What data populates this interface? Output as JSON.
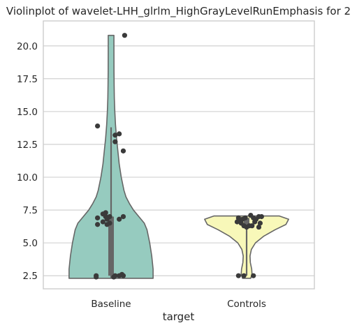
{
  "chart_data": {
    "type": "violin",
    "title": "Violinplot of wavelet-LHH_glrlm_HighGrayLevelRunEmphasis for 2",
    "xlabel": "target",
    "ylabel": "",
    "categories": [
      "Baseline",
      "Controls"
    ],
    "ylim": [
      1.5,
      21.9
    ],
    "yticks": [
      2.5,
      5.0,
      7.5,
      10.0,
      12.5,
      15.0,
      17.5,
      20.0
    ],
    "ytick_labels": [
      "2.5",
      "5.0",
      "7.5",
      "10.0",
      "12.5",
      "15.0",
      "17.5",
      "20.0"
    ],
    "grid": "horizontal",
    "colors": {
      "Baseline": "#96cbbf",
      "Controls": "#f8f8b9",
      "outline": "#666666",
      "points": "#3a3a3a",
      "box": "#666666",
      "grid": "#cccccc",
      "frame": "#cccccc"
    },
    "violins": [
      {
        "category": "Baseline",
        "halfwidth_profile": [
          [
            2.3,
            0.62
          ],
          [
            3.0,
            0.62
          ],
          [
            4.0,
            0.6
          ],
          [
            5.0,
            0.57
          ],
          [
            6.0,
            0.53
          ],
          [
            6.5,
            0.49
          ],
          [
            7.0,
            0.41
          ],
          [
            7.5,
            0.33
          ],
          [
            8.0,
            0.27
          ],
          [
            8.5,
            0.22
          ],
          [
            9.0,
            0.19
          ],
          [
            10.0,
            0.15
          ],
          [
            11.0,
            0.12
          ],
          [
            12.0,
            0.1
          ],
          [
            13.0,
            0.08
          ],
          [
            14.0,
            0.065
          ],
          [
            15.0,
            0.055
          ],
          [
            16.0,
            0.048
          ],
          [
            17.0,
            0.045
          ],
          [
            18.0,
            0.043
          ],
          [
            20.0,
            0.042
          ],
          [
            20.8,
            0.042
          ]
        ],
        "box": {
          "q1": 2.5,
          "median": 6.6,
          "q3": 7.0,
          "whisker_low": 2.3,
          "whisker_high": 13.8
        }
      },
      {
        "category": "Controls",
        "halfwidth_profile": [
          [
            2.3,
            0.06
          ],
          [
            2.6,
            0.08
          ],
          [
            3.0,
            0.075
          ],
          [
            3.5,
            0.055
          ],
          [
            4.0,
            0.05
          ],
          [
            4.5,
            0.07
          ],
          [
            5.0,
            0.13
          ],
          [
            5.5,
            0.25
          ],
          [
            6.0,
            0.42
          ],
          [
            6.4,
            0.58
          ],
          [
            6.8,
            0.62
          ],
          [
            7.05,
            0.48
          ]
        ],
        "box": {
          "q1": 6.3,
          "median": 6.7,
          "q3": 6.9,
          "whisker_low": 2.5,
          "whisker_high": 7.05
        }
      }
    ],
    "points": [
      {
        "category": "Baseline",
        "jitter": 0.1,
        "y": 20.8
      },
      {
        "category": "Baseline",
        "jitter": -0.1,
        "y": 13.9
      },
      {
        "category": "Baseline",
        "jitter": 0.03,
        "y": 13.2
      },
      {
        "category": "Baseline",
        "jitter": 0.06,
        "y": 13.3
      },
      {
        "category": "Baseline",
        "jitter": 0.03,
        "y": 12.7
      },
      {
        "category": "Baseline",
        "jitter": 0.09,
        "y": 12.0
      },
      {
        "category": "Baseline",
        "jitter": -0.06,
        "y": 7.2
      },
      {
        "category": "Baseline",
        "jitter": -0.04,
        "y": 7.3
      },
      {
        "category": "Baseline",
        "jitter": -0.1,
        "y": 6.9
      },
      {
        "category": "Baseline",
        "jitter": -0.04,
        "y": 7.0
      },
      {
        "category": "Baseline",
        "jitter": -0.01,
        "y": 7.0
      },
      {
        "category": "Baseline",
        "jitter": 0.09,
        "y": 7.0
      },
      {
        "category": "Baseline",
        "jitter": 0.06,
        "y": 6.8
      },
      {
        "category": "Baseline",
        "jitter": -0.03,
        "y": 6.8
      },
      {
        "category": "Baseline",
        "jitter": -0.06,
        "y": 6.6
      },
      {
        "category": "Baseline",
        "jitter": -0.01,
        "y": 6.5
      },
      {
        "category": "Baseline",
        "jitter": -0.1,
        "y": 6.4
      },
      {
        "category": "Baseline",
        "jitter": -0.03,
        "y": 6.4
      },
      {
        "category": "Baseline",
        "jitter": -0.11,
        "y": 2.5
      },
      {
        "category": "Baseline",
        "jitter": -0.11,
        "y": 2.4
      },
      {
        "category": "Baseline",
        "jitter": 0.03,
        "y": 2.5
      },
      {
        "category": "Baseline",
        "jitter": 0.06,
        "y": 2.5
      },
      {
        "category": "Baseline",
        "jitter": 0.08,
        "y": 2.6
      },
      {
        "category": "Baseline",
        "jitter": 0.09,
        "y": 2.5
      },
      {
        "category": "Baseline",
        "jitter": 0.02,
        "y": 2.4
      },
      {
        "category": "Controls",
        "jitter": -0.06,
        "y": 6.9
      },
      {
        "category": "Controls",
        "jitter": -0.05,
        "y": 6.7
      },
      {
        "category": "Controls",
        "jitter": -0.03,
        "y": 6.8
      },
      {
        "category": "Controls",
        "jitter": -0.01,
        "y": 6.9
      },
      {
        "category": "Controls",
        "jitter": -0.07,
        "y": 6.6
      },
      {
        "category": "Controls",
        "jitter": -0.04,
        "y": 6.5
      },
      {
        "category": "Controls",
        "jitter": -0.02,
        "y": 6.3
      },
      {
        "category": "Controls",
        "jitter": 0.0,
        "y": 6.2
      },
      {
        "category": "Controls",
        "jitter": 0.02,
        "y": 6.3
      },
      {
        "category": "Controls",
        "jitter": 0.03,
        "y": 7.1
      },
      {
        "category": "Controls",
        "jitter": 0.05,
        "y": 6.9
      },
      {
        "category": "Controls",
        "jitter": 0.07,
        "y": 6.8
      },
      {
        "category": "Controls",
        "jitter": 0.09,
        "y": 7.0
      },
      {
        "category": "Controls",
        "jitter": 0.11,
        "y": 7.0
      },
      {
        "category": "Controls",
        "jitter": 0.06,
        "y": 6.6
      },
      {
        "category": "Controls",
        "jitter": 0.1,
        "y": 6.5
      },
      {
        "category": "Controls",
        "jitter": 0.09,
        "y": 6.2
      },
      {
        "category": "Controls",
        "jitter": 0.04,
        "y": 6.3
      },
      {
        "category": "Controls",
        "jitter": -0.02,
        "y": 2.5
      },
      {
        "category": "Controls",
        "jitter": -0.06,
        "y": 2.5
      },
      {
        "category": "Controls",
        "jitter": 0.05,
        "y": 2.5
      }
    ]
  }
}
